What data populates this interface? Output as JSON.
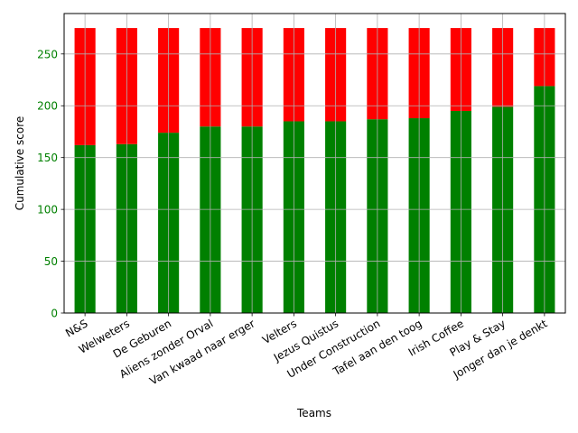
{
  "chart_data": {
    "type": "bar",
    "stacked": true,
    "categories": [
      "N&S",
      "Welweters",
      "De Geburen",
      "Aliens zonder Orval",
      "Van kwaad naar erger",
      "Velters",
      "Jezus Quistus",
      "Under Construction",
      "Tafel aan den toog",
      "Irish Coffee",
      "Play & Stay",
      "Jonger dan je denkt"
    ],
    "series": [
      {
        "color": "#008000",
        "values": [
          162,
          163,
          174,
          180,
          180,
          185,
          185,
          187,
          188,
          195,
          199,
          219
        ]
      },
      {
        "color": "#ff0000",
        "values": [
          113,
          112,
          101,
          95,
          95,
          90,
          90,
          88,
          87,
          80,
          76,
          56
        ]
      }
    ],
    "title": "",
    "xlabel": "Teams",
    "ylabel": "Cumulative score",
    "ylim": [
      0,
      289
    ],
    "yticks": [
      0,
      50,
      100,
      150,
      200,
      250
    ],
    "ytick_color": "#008000",
    "grid": true,
    "legend": false
  }
}
